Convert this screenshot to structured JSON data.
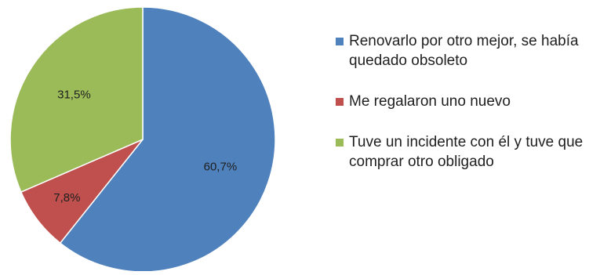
{
  "chart_data": {
    "type": "pie",
    "title": "",
    "slices": [
      {
        "label": "Renovarlo por otro mejor, se había quedado obsoleto",
        "value": 60.7,
        "display": "60,7%",
        "color": "#4f81bd"
      },
      {
        "label": "Me regalaron uno nuevo",
        "value": 7.8,
        "display": "7,8%",
        "color": "#c0504d"
      },
      {
        "label": "Tuve un incidente con él y tuve que comprar otro obligado",
        "value": 31.5,
        "display": "31,5%",
        "color": "#9bbb59"
      }
    ],
    "legend_position": "right",
    "start_angle": "12 o'clock",
    "direction": "clockwise"
  }
}
